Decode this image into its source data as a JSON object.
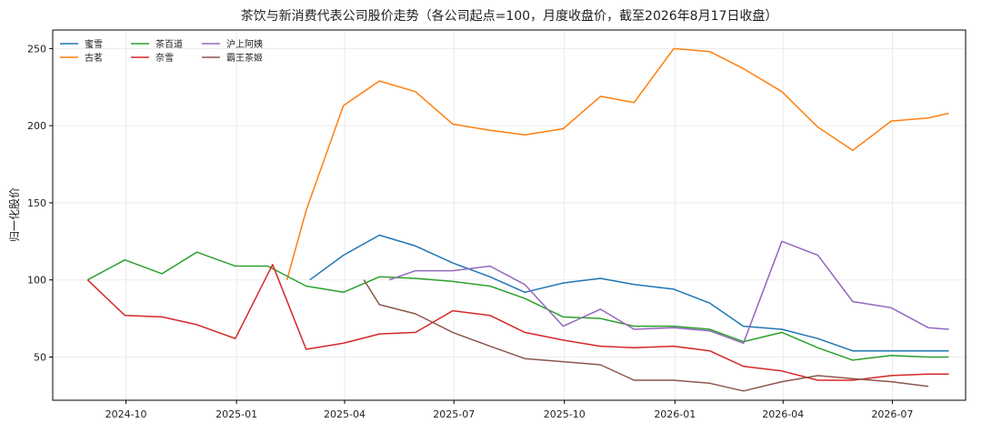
{
  "chart_data": {
    "type": "line",
    "title": "茶饮与新消费代表公司股价走势（各公司起点=100，月度收盘价，截至2026年8月17日收盘）",
    "xlabel": "",
    "ylabel": "归一化股价",
    "x_ticks": [
      "2024-10",
      "2025-01",
      "2025-04",
      "2025-07",
      "2025-10",
      "2026-01",
      "2026-04",
      "2026-07"
    ],
    "y_ticks": [
      50,
      100,
      150,
      200,
      250
    ],
    "xlim": [
      "2024-08-01",
      "2026-08-31"
    ],
    "ylim": [
      22,
      262
    ],
    "grid": true,
    "legend_position": "top-left",
    "series": [
      {
        "name": "蜜雪",
        "color": "#1f77b4",
        "points": [
          [
            "2025-03-03",
            100
          ],
          [
            "2025-03-31",
            116
          ],
          [
            "2025-04-30",
            129
          ],
          [
            "2025-05-30",
            122
          ],
          [
            "2025-06-30",
            111
          ],
          [
            "2025-07-31",
            102
          ],
          [
            "2025-08-29",
            92
          ],
          [
            "2025-09-30",
            98
          ],
          [
            "2025-10-31",
            101
          ],
          [
            "2025-11-28",
            97
          ],
          [
            "2025-12-31",
            94
          ],
          [
            "2026-01-30",
            85
          ],
          [
            "2026-02-27",
            70
          ],
          [
            "2026-03-31",
            68
          ],
          [
            "2026-04-30",
            62
          ],
          [
            "2026-05-29",
            54
          ],
          [
            "2026-06-30",
            54
          ],
          [
            "2026-07-31",
            54
          ],
          [
            "2026-08-17",
            54
          ]
        ]
      },
      {
        "name": "古茗",
        "color": "#ff7f0e",
        "points": [
          [
            "2025-02-12",
            100
          ],
          [
            "2025-02-28",
            145
          ],
          [
            "2025-03-31",
            213
          ],
          [
            "2025-04-30",
            229
          ],
          [
            "2025-05-30",
            222
          ],
          [
            "2025-06-30",
            201
          ],
          [
            "2025-07-31",
            197
          ],
          [
            "2025-08-29",
            194
          ],
          [
            "2025-09-30",
            198
          ],
          [
            "2025-10-31",
            219
          ],
          [
            "2025-11-28",
            215
          ],
          [
            "2025-12-31",
            250
          ],
          [
            "2026-01-30",
            248
          ],
          [
            "2026-02-27",
            237
          ],
          [
            "2026-03-31",
            222
          ],
          [
            "2026-04-30",
            199
          ],
          [
            "2026-05-29",
            184
          ],
          [
            "2026-06-30",
            203
          ],
          [
            "2026-07-31",
            205
          ],
          [
            "2026-08-17",
            208
          ]
        ]
      },
      {
        "name": "茶百道",
        "color": "#2ca02c",
        "points": [
          [
            "2024-08-30",
            100
          ],
          [
            "2024-09-30",
            113
          ],
          [
            "2024-10-31",
            104
          ],
          [
            "2024-11-29",
            118
          ],
          [
            "2024-12-31",
            109
          ],
          [
            "2025-01-27",
            109
          ],
          [
            "2025-02-28",
            96
          ],
          [
            "2025-03-31",
            92
          ],
          [
            "2025-04-30",
            102
          ],
          [
            "2025-05-30",
            101
          ],
          [
            "2025-06-30",
            99
          ],
          [
            "2025-07-31",
            96
          ],
          [
            "2025-08-29",
            88
          ],
          [
            "2025-09-30",
            76
          ],
          [
            "2025-10-31",
            75
          ],
          [
            "2025-11-28",
            70
          ],
          [
            "2025-12-31",
            70
          ],
          [
            "2026-01-30",
            68
          ],
          [
            "2026-02-27",
            60
          ],
          [
            "2026-03-31",
            66
          ],
          [
            "2026-04-30",
            56
          ],
          [
            "2026-05-29",
            48
          ],
          [
            "2026-06-30",
            51
          ],
          [
            "2026-07-31",
            50
          ],
          [
            "2026-08-17",
            50
          ]
        ]
      },
      {
        "name": "奈雪",
        "color": "#d62728",
        "points": [
          [
            "2024-08-30",
            100
          ],
          [
            "2024-09-30",
            77
          ],
          [
            "2024-10-31",
            76
          ],
          [
            "2024-11-29",
            71
          ],
          [
            "2024-12-31",
            62
          ],
          [
            "2025-01-31",
            110
          ],
          [
            "2025-02-28",
            55
          ],
          [
            "2025-03-31",
            59
          ],
          [
            "2025-04-30",
            65
          ],
          [
            "2025-05-30",
            66
          ],
          [
            "2025-06-30",
            80
          ],
          [
            "2025-07-31",
            77
          ],
          [
            "2025-08-29",
            66
          ],
          [
            "2025-09-30",
            61
          ],
          [
            "2025-10-31",
            57
          ],
          [
            "2025-11-28",
            56
          ],
          [
            "2025-12-31",
            57
          ],
          [
            "2026-01-30",
            54
          ],
          [
            "2026-02-27",
            44
          ],
          [
            "2026-03-31",
            41
          ],
          [
            "2026-04-30",
            35
          ],
          [
            "2026-05-29",
            35
          ],
          [
            "2026-06-30",
            38
          ],
          [
            "2026-07-31",
            39
          ],
          [
            "2026-08-17",
            39
          ]
        ]
      },
      {
        "name": "沪上阿姨",
        "color": "#9467bd",
        "points": [
          [
            "2025-05-08",
            100
          ],
          [
            "2025-05-30",
            106
          ],
          [
            "2025-06-30",
            106
          ],
          [
            "2025-07-31",
            109
          ],
          [
            "2025-08-29",
            97
          ],
          [
            "2025-09-30",
            70
          ],
          [
            "2025-10-31",
            81
          ],
          [
            "2025-11-28",
            68
          ],
          [
            "2025-12-31",
            69
          ],
          [
            "2026-01-30",
            67
          ],
          [
            "2026-02-27",
            59
          ],
          [
            "2026-03-31",
            125
          ],
          [
            "2026-04-30",
            116
          ],
          [
            "2026-05-29",
            86
          ],
          [
            "2026-06-30",
            82
          ],
          [
            "2026-07-31",
            69
          ],
          [
            "2026-08-17",
            68
          ]
        ]
      },
      {
        "name": "霸王茶姬",
        "color": "#8c564b",
        "points": [
          [
            "2025-04-17",
            100
          ],
          [
            "2025-04-30",
            84
          ],
          [
            "2025-05-30",
            78
          ],
          [
            "2025-06-30",
            66
          ],
          [
            "2025-07-31",
            57
          ],
          [
            "2025-08-29",
            49
          ],
          [
            "2025-09-30",
            47
          ],
          [
            "2025-10-31",
            45
          ],
          [
            "2025-11-28",
            35
          ],
          [
            "2025-12-31",
            35
          ],
          [
            "2026-01-30",
            33
          ],
          [
            "2026-02-27",
            28
          ],
          [
            "2026-03-31",
            34
          ],
          [
            "2026-04-30",
            38
          ],
          [
            "2026-05-29",
            36
          ],
          [
            "2026-06-30",
            34
          ],
          [
            "2026-07-31",
            31
          ]
        ]
      }
    ]
  }
}
